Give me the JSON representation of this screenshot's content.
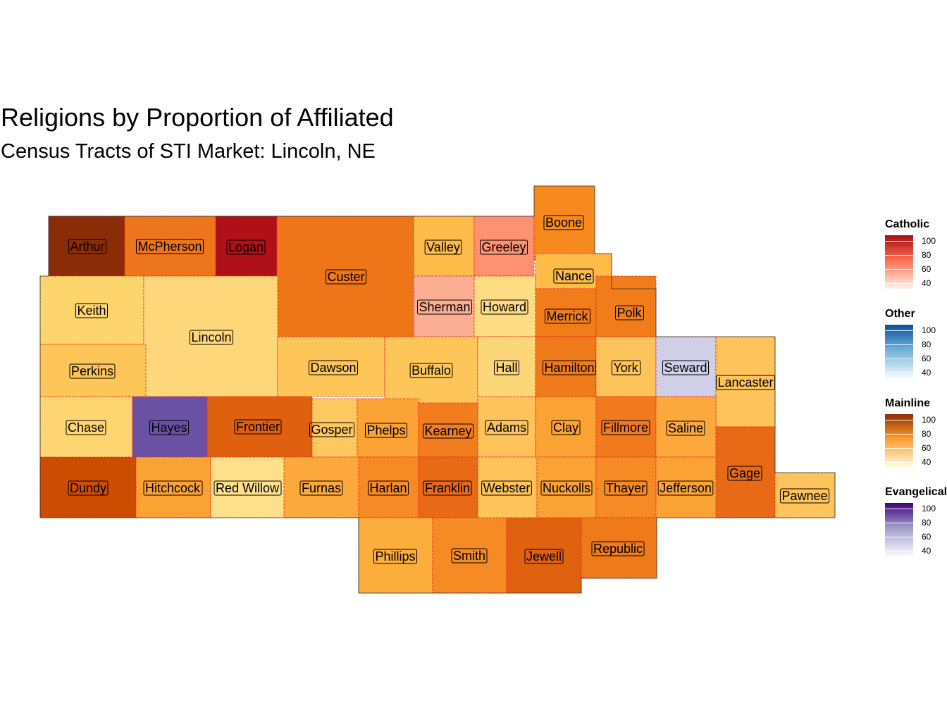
{
  "title": "Religions by Proportion of Affiliated",
  "subtitle": "Census Tracts of STI Market: Lincoln, NE",
  "colors": {
    "border": "#e8271d",
    "label_border": "#000000"
  },
  "counties": [
    {
      "name": "Arthur",
      "color": "#8a2d06"
    },
    {
      "name": "McPherson",
      "color": "#ed751b"
    },
    {
      "name": "Logan",
      "color": "#b01118"
    },
    {
      "name": "Custer",
      "color": "#ee7618"
    },
    {
      "name": "Valley",
      "color": "#fdbb4a"
    },
    {
      "name": "Greeley",
      "color": "#fc9272"
    },
    {
      "name": "Boone",
      "color": "#f68a1e"
    },
    {
      "name": "Nance",
      "color": "#fdbb4a"
    },
    {
      "name": "Keith",
      "color": "#fed56d"
    },
    {
      "name": "Lincoln",
      "color": "#fed77a"
    },
    {
      "name": "Sherman",
      "color": "#fcae92"
    },
    {
      "name": "Howard",
      "color": "#fedc84"
    },
    {
      "name": "Merrick",
      "color": "#f07c1a"
    },
    {
      "name": "Polk",
      "color": "#f07c1a"
    },
    {
      "name": "Perkins",
      "color": "#fec658"
    },
    {
      "name": "Dawson",
      "color": "#fec658"
    },
    {
      "name": "Buffalo",
      "color": "#fec658"
    },
    {
      "name": "Hall",
      "color": "#fed67a"
    },
    {
      "name": "Hamilton",
      "color": "#ef7a1a"
    },
    {
      "name": "York",
      "color": "#fec35a"
    },
    {
      "name": "Seward",
      "color": "#cfd0e8"
    },
    {
      "name": "Lancaster",
      "color": "#fec35a"
    },
    {
      "name": "Chase",
      "color": "#fed570"
    },
    {
      "name": "Hayes",
      "color": "#6a51a3"
    },
    {
      "name": "Frontier",
      "color": "#df600f"
    },
    {
      "name": "Gosper",
      "color": "#fec860"
    },
    {
      "name": "Phelps",
      "color": "#fba235"
    },
    {
      "name": "Kearney",
      "color": "#f17d1e"
    },
    {
      "name": "Adams",
      "color": "#fec35a"
    },
    {
      "name": "Clay",
      "color": "#fba235"
    },
    {
      "name": "Fillmore",
      "color": "#f07a1d"
    },
    {
      "name": "Saline",
      "color": "#fca83c"
    },
    {
      "name": "Gage",
      "color": "#e86a16"
    },
    {
      "name": "Dundy",
      "color": "#cc4c02"
    },
    {
      "name": "Hitchcock",
      "color": "#fba235"
    },
    {
      "name": "Red Willow",
      "color": "#fee08b"
    },
    {
      "name": "Furnas",
      "color": "#fca83c"
    },
    {
      "name": "Harlan",
      "color": "#f68a25"
    },
    {
      "name": "Franklin",
      "color": "#e86a16"
    },
    {
      "name": "Webster",
      "color": "#fec35a"
    },
    {
      "name": "Nuckolls",
      "color": "#fba235"
    },
    {
      "name": "Thayer",
      "color": "#f68a25"
    },
    {
      "name": "Jefferson",
      "color": "#fba235"
    },
    {
      "name": "Pawnee",
      "color": "#fec35a"
    },
    {
      "name": "Phillips",
      "color": "#fcae3c"
    },
    {
      "name": "Smith",
      "color": "#f68a25"
    },
    {
      "name": "Jewell",
      "color": "#e0610f"
    },
    {
      "name": "Republic",
      "color": "#ef7a1a"
    }
  ],
  "legends": [
    {
      "title": "Catholic",
      "low": "#fff5f0",
      "mid": "#fb6a4a",
      "high": "#a50f15",
      "ticks": [
        "100",
        "80",
        "60",
        "40"
      ]
    },
    {
      "title": "Other",
      "low": "#f7fbff",
      "mid": "#6baed6",
      "high": "#08519c",
      "ticks": [
        "100",
        "80",
        "60",
        "40"
      ]
    },
    {
      "title": "Mainline",
      "low": "#ffffe5",
      "mid": "#fe9929",
      "high": "#8c2d04",
      "ticks": [
        "100",
        "80",
        "60",
        "40"
      ]
    },
    {
      "title": "Evangelical",
      "low": "#fcfbfd",
      "mid": "#9e9ac8",
      "high": "#3f007d",
      "ticks": [
        "100",
        "80",
        "60",
        "40"
      ]
    }
  ]
}
